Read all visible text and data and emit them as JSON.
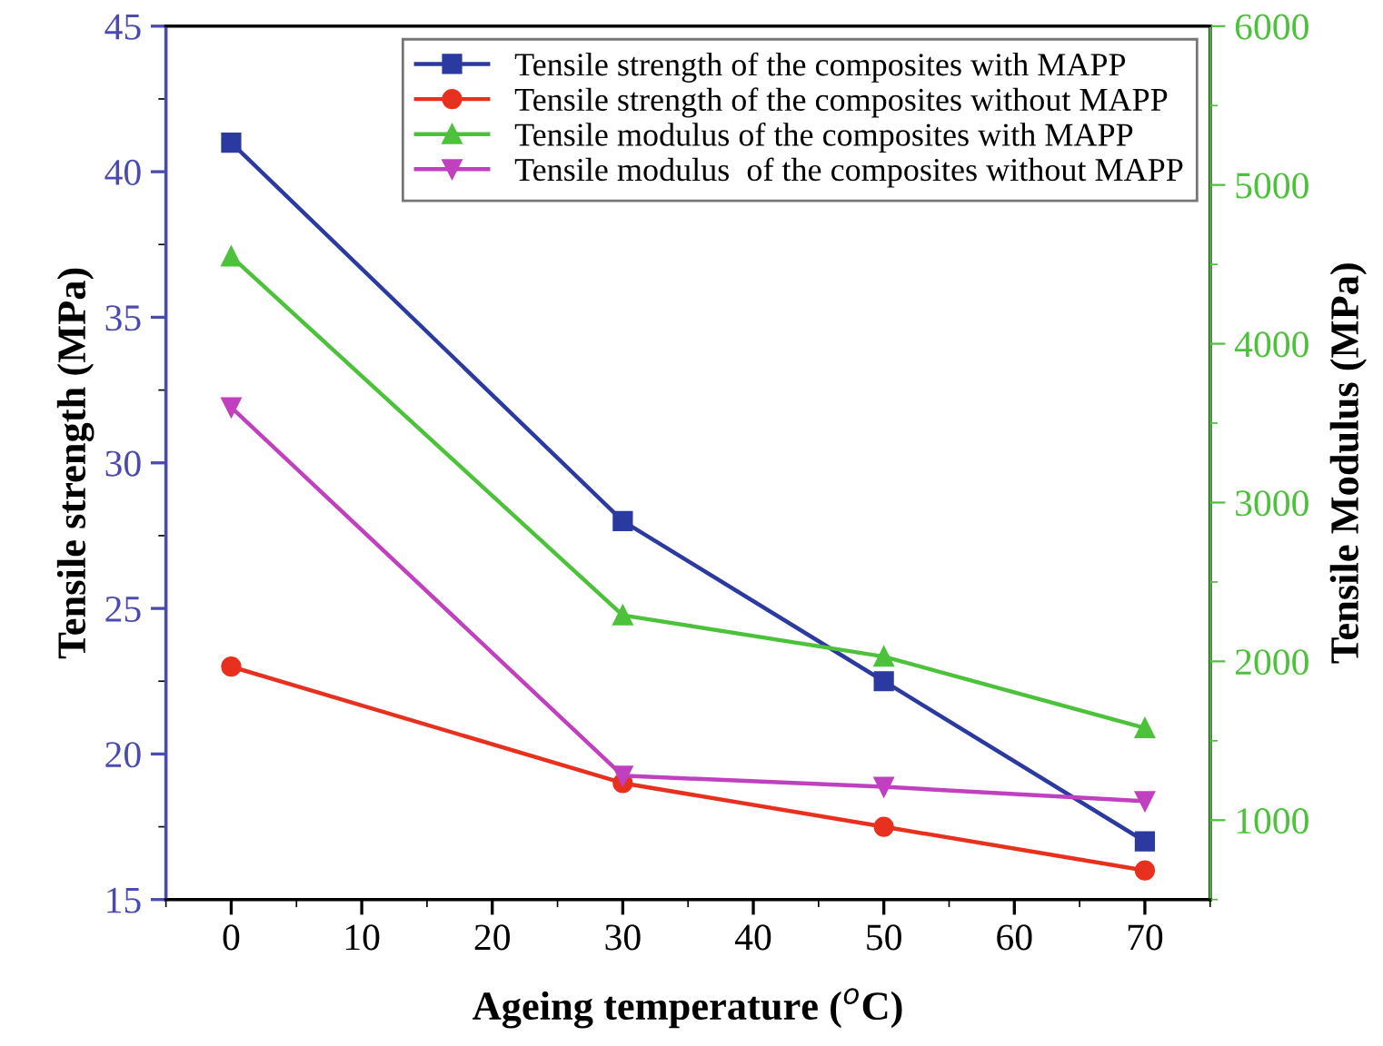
{
  "chart_data": {
    "type": "line",
    "xlabel": "Ageing temperature ($^{o}$C)",
    "ylabel": "Tensile strength (MPa)",
    "y2label": "Tensile Modulus (MPa)",
    "x": [
      0,
      30,
      50,
      70
    ],
    "xlim": [
      -5,
      75
    ],
    "xticks": [
      0,
      10,
      20,
      30,
      40,
      50,
      60,
      70
    ],
    "ylim": [
      15,
      45
    ],
    "yticks": [
      15,
      20,
      25,
      30,
      35,
      40,
      45
    ],
    "y2lim": [
      500,
      6000
    ],
    "y2ticks": [
      1000,
      2000,
      3000,
      4000,
      5000,
      6000
    ],
    "grid": false,
    "legend": "top right",
    "series": [
      {
        "name": "Tensile strength of the composites with MAPP",
        "color": "#2b3aa0",
        "marker": "square",
        "values": [
          41,
          28,
          22.5,
          17
        ]
      },
      {
        "name": "Tensile strength of the composites without MAPP",
        "color": "#e8301e",
        "marker": "circle",
        "values": [
          23,
          19,
          17.5,
          16
        ]
      },
      {
        "name": "Tensile modulus of the composites with MAPP",
        "color": "#4cc23a",
        "marker": "triangle",
        "axis": "y2",
        "values": [
          4550,
          2290,
          2030,
          1580
        ]
      },
      {
        "name": "Tensile modulus  of the composites without MAPP",
        "color": "#c040c0",
        "marker": "triangle_down",
        "axis": "y2",
        "values": [
          3600,
          1280,
          1210,
          1120
        ]
      }
    ]
  }
}
